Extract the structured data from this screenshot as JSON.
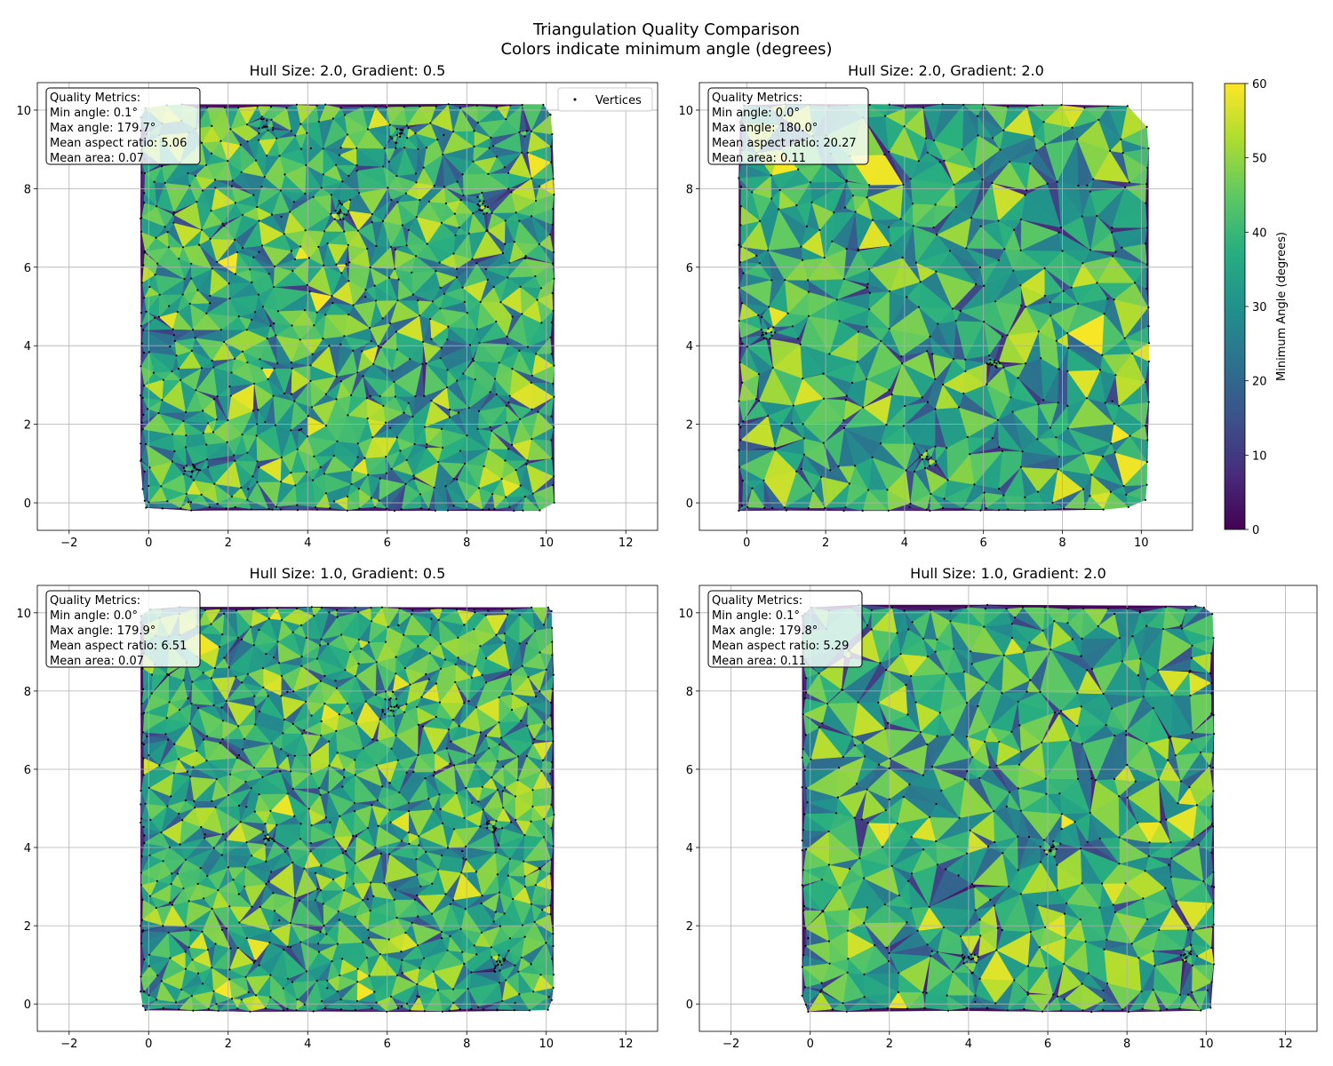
{
  "figure": {
    "title_line1": "Triangulation Quality Comparison",
    "title_line2": "Colors indicate minimum angle (degrees)"
  },
  "colorbar": {
    "label": "Minimum Angle (degrees)",
    "range": [
      0,
      60
    ],
    "ticks": [
      "0",
      "10",
      "20",
      "30",
      "40",
      "50",
      "60"
    ],
    "colormap": "viridis"
  },
  "chart_data": [
    {
      "type": "heatmap",
      "subtype": "triangulation-mesh",
      "title": "Hull Size: 2.0, Gradient: 0.5",
      "hull_size": 2.0,
      "gradient": 0.5,
      "xlim": [
        -2.8,
        12.8
      ],
      "ylim": [
        -0.7,
        10.7
      ],
      "xticks": [
        "−2",
        "0",
        "2",
        "4",
        "6",
        "8",
        "10",
        "12"
      ],
      "yticks": [
        "0",
        "2",
        "4",
        "6",
        "8",
        "10"
      ],
      "grid": true,
      "domain": [
        0,
        10
      ],
      "approx_vertex_count": 620,
      "dense_clusters": [
        [
          4.8,
          7.4
        ],
        [
          2.9,
          9.6
        ],
        [
          6.3,
          9.4
        ],
        [
          8.3,
          7.5
        ],
        [
          1.1,
          0.8
        ]
      ],
      "legend": {
        "show": true,
        "placement": "top-right",
        "entries": [
          "Vertices"
        ]
      },
      "metrics_title": "Quality Metrics:",
      "metrics": [
        "Min angle: 0.1°",
        "Max angle: 179.7°",
        "Mean aspect ratio: 5.06",
        "Mean area: 0.07"
      ],
      "min_angle": 0.1,
      "max_angle": 179.7,
      "mean_aspect_ratio": 5.06,
      "mean_area": 0.07
    },
    {
      "type": "heatmap",
      "subtype": "triangulation-mesh",
      "title": "Hull Size: 2.0, Gradient: 2.0",
      "hull_size": 2.0,
      "gradient": 2.0,
      "xlim": [
        -1.2,
        11.3
      ],
      "ylim": [
        -0.7,
        10.7
      ],
      "xticks": [
        "0",
        "2",
        "4",
        "6",
        "8",
        "10"
      ],
      "yticks": [
        "0",
        "2",
        "4",
        "6",
        "8",
        "10"
      ],
      "grid": true,
      "domain": [
        0,
        10
      ],
      "approx_vertex_count": 360,
      "dense_clusters": [
        [
          4.6,
          1.1
        ],
        [
          6.3,
          3.5
        ],
        [
          0.5,
          4.3
        ]
      ],
      "legend": {
        "show": false
      },
      "metrics_title": "Quality Metrics:",
      "metrics": [
        "Min angle: 0.0°",
        "Max angle: 180.0°",
        "Mean aspect ratio: 20.27",
        "Mean area: 0.11"
      ],
      "min_angle": 0.0,
      "max_angle": 180.0,
      "mean_aspect_ratio": 20.27,
      "mean_area": 0.11
    },
    {
      "type": "heatmap",
      "subtype": "triangulation-mesh",
      "title": "Hull Size: 1.0, Gradient: 0.5",
      "hull_size": 1.0,
      "gradient": 0.5,
      "xlim": [
        -2.8,
        12.8
      ],
      "ylim": [
        -0.7,
        10.7
      ],
      "xticks": [
        "−2",
        "0",
        "2",
        "4",
        "6",
        "8",
        "10",
        "12"
      ],
      "yticks": [
        "0",
        "2",
        "4",
        "6",
        "8",
        "10"
      ],
      "grid": true,
      "domain": [
        0,
        10
      ],
      "approx_vertex_count": 640,
      "dense_clusters": [
        [
          8.7,
          4.5
        ],
        [
          3.0,
          4.2
        ],
        [
          6.1,
          7.6
        ],
        [
          8.8,
          1.0
        ]
      ],
      "legend": {
        "show": false
      },
      "metrics_title": "Quality Metrics:",
      "metrics": [
        "Min angle: 0.0°",
        "Max angle: 179.9°",
        "Mean aspect ratio: 6.51",
        "Mean area: 0.07"
      ],
      "min_angle": 0.0,
      "max_angle": 179.9,
      "mean_aspect_ratio": 6.51,
      "mean_area": 0.07
    },
    {
      "type": "heatmap",
      "subtype": "triangulation-mesh",
      "title": "Hull Size: 1.0, Gradient: 2.0",
      "hull_size": 1.0,
      "gradient": 2.0,
      "xlim": [
        -2.8,
        12.8
      ],
      "ylim": [
        -0.7,
        10.7
      ],
      "xticks": [
        "−2",
        "0",
        "2",
        "4",
        "6",
        "8",
        "10",
        "12"
      ],
      "yticks": [
        "0",
        "2",
        "4",
        "6",
        "8",
        "10"
      ],
      "grid": true,
      "domain": [
        0,
        10
      ],
      "approx_vertex_count": 380,
      "dense_clusters": [
        [
          4.0,
          1.2
        ],
        [
          9.6,
          1.3
        ],
        [
          6.1,
          4.0
        ]
      ],
      "legend": {
        "show": false
      },
      "metrics_title": "Quality Metrics:",
      "metrics": [
        "Min angle: 0.1°",
        "Max angle: 179.8°",
        "Mean aspect ratio: 5.29",
        "Mean area: 0.11"
      ],
      "min_angle": 0.1,
      "max_angle": 179.8,
      "mean_aspect_ratio": 5.29,
      "mean_area": 0.11
    }
  ]
}
